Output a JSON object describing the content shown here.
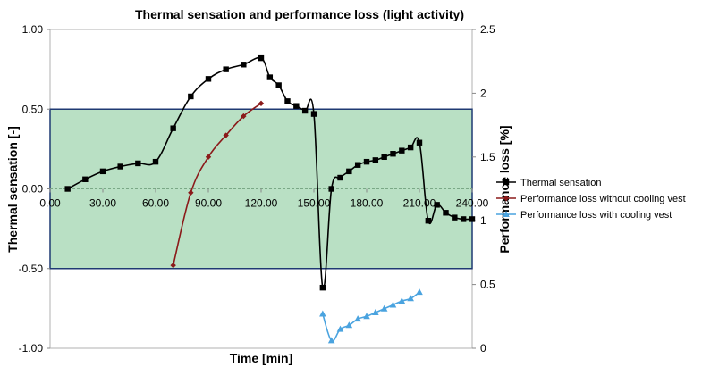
{
  "chart_data": {
    "type": "line",
    "title": "Thermal sensation and performance loss (light activity)",
    "xlabel": "Time [min]",
    "ylabel": "Thermal sensation [-]",
    "y2label": "Performance loss [%]",
    "xlim": [
      0,
      240
    ],
    "ylim": [
      -1.0,
      1.0
    ],
    "y2lim": [
      0,
      2.5
    ],
    "x_ticks": [
      "0.00",
      "30.00",
      "60.00",
      "90.00",
      "120.00",
      "150.00",
      "180.00",
      "210.00",
      "240.00"
    ],
    "y_ticks": [
      "1.00",
      "0.50",
      "0.00",
      "-0.50",
      "-1.00"
    ],
    "y2_ticks": [
      "2.5",
      "2",
      "1.5",
      "1",
      "0.5",
      "0"
    ],
    "comfort_band": {
      "y_min": -0.5,
      "y_max": 0.5,
      "color": "#b9e0c4",
      "border_color": "#1f3a73"
    },
    "grid": false,
    "legend_position": "right",
    "series": [
      {
        "name": "Thermal sensation",
        "axis": "left",
        "color": "#000000",
        "marker": "square",
        "x": [
          10,
          20,
          30,
          40,
          50,
          60,
          70,
          80,
          90,
          100,
          110,
          120,
          125,
          130,
          135,
          140,
          145,
          150,
          155,
          160,
          165,
          170,
          175,
          180,
          185,
          190,
          195,
          200,
          205,
          210,
          215,
          220,
          225,
          230,
          235,
          240
        ],
        "y": [
          0.0,
          0.06,
          0.11,
          0.14,
          0.16,
          0.17,
          0.38,
          0.58,
          0.69,
          0.75,
          0.78,
          0.82,
          0.7,
          0.65,
          0.55,
          0.52,
          0.49,
          0.47,
          -0.62,
          0.0,
          0.07,
          0.11,
          0.15,
          0.17,
          0.18,
          0.2,
          0.22,
          0.24,
          0.26,
          0.29,
          -0.2,
          -0.1,
          -0.15,
          -0.18,
          -0.19,
          -0.19
        ]
      },
      {
        "name": "Performance loss without cooling vest",
        "axis": "right",
        "color": "#8b1a1a",
        "marker": "diamond",
        "x": [
          70,
          80,
          90,
          100,
          110,
          120
        ],
        "y": [
          0.65,
          1.22,
          1.5,
          1.67,
          1.82,
          1.92
        ]
      },
      {
        "name": "Performance loss with cooling vest",
        "axis": "right",
        "color": "#4aa3df",
        "marker": "triangle",
        "x": [
          155,
          160,
          165,
          170,
          175,
          180,
          185,
          190,
          195,
          200,
          205,
          210
        ],
        "y": [
          0.27,
          0.06,
          0.15,
          0.18,
          0.23,
          0.25,
          0.28,
          0.31,
          0.34,
          0.37,
          0.39,
          0.44
        ]
      }
    ]
  }
}
